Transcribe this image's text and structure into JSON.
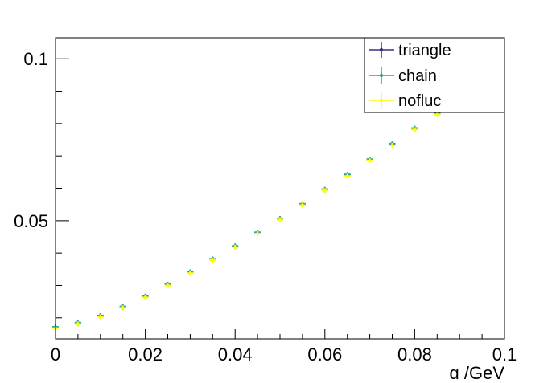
{
  "chart_data": {
    "type": "scatter",
    "title": "",
    "xlabel": "q /GeV",
    "ylabel": "",
    "xlim": [
      0,
      0.1
    ],
    "ylim": [
      0.0135,
      0.1065
    ],
    "x_ticks": [
      0,
      0.02,
      0.04,
      0.06,
      0.08,
      0.1
    ],
    "x_tick_labels": [
      "0",
      "0.02",
      "0.04",
      "0.06",
      "0.08",
      "0.1"
    ],
    "y_ticks": [
      0.05,
      0.1
    ],
    "y_tick_labels": [
      "0.05",
      "0.1"
    ],
    "y_minor_ticks": [
      0.02,
      0.03,
      0.04,
      0.06,
      0.07,
      0.08,
      0.09
    ],
    "grid": false,
    "legend_position": "top-right",
    "series": [
      {
        "name": "triangle",
        "color": "#3b2f7e",
        "x": [
          0.0,
          0.005,
          0.01,
          0.015,
          0.02,
          0.025,
          0.03,
          0.035,
          0.04,
          0.045,
          0.05,
          0.055,
          0.06,
          0.065,
          0.07,
          0.075,
          0.08,
          0.085
        ],
        "y": [
          0.017,
          0.0183,
          0.0205,
          0.0233,
          0.0265,
          0.0302,
          0.034,
          0.038,
          0.042,
          0.0462,
          0.0505,
          0.055,
          0.0595,
          0.064,
          0.0688,
          0.0735,
          0.0783,
          0.083
        ]
      },
      {
        "name": "chain",
        "color": "#2aa198",
        "x": [
          0.0,
          0.005,
          0.01,
          0.015,
          0.02,
          0.025,
          0.03,
          0.035,
          0.04,
          0.045,
          0.05,
          0.055,
          0.06,
          0.065,
          0.07,
          0.075,
          0.08,
          0.085
        ],
        "y": [
          0.0172,
          0.0185,
          0.0207,
          0.0235,
          0.0267,
          0.0304,
          0.0342,
          0.0382,
          0.0422,
          0.0464,
          0.0507,
          0.0552,
          0.0597,
          0.0643,
          0.069,
          0.0738,
          0.0786,
          0.0833
        ]
      },
      {
        "name": "nofluc",
        "color": "#ffff00",
        "x": [
          0.0,
          0.005,
          0.01,
          0.015,
          0.02,
          0.025,
          0.03,
          0.035,
          0.04,
          0.045,
          0.05,
          0.055,
          0.06,
          0.065,
          0.07,
          0.075,
          0.08,
          0.085
        ],
        "y": [
          0.0168,
          0.0181,
          0.0203,
          0.0231,
          0.0263,
          0.03,
          0.0338,
          0.0378,
          0.0418,
          0.046,
          0.0503,
          0.0548,
          0.0593,
          0.0638,
          0.0686,
          0.0733,
          0.0781,
          0.0828
        ]
      }
    ]
  }
}
